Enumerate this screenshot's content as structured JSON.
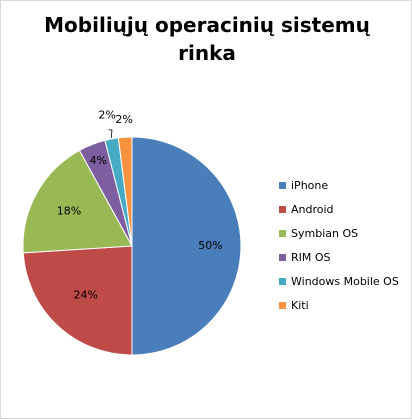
{
  "chart_data": {
    "type": "pie",
    "title_lines": [
      "Mobiliųjų operacinių sistemų",
      "rinka"
    ],
    "categories": [
      "iPhone",
      "Android",
      "Symbian OS",
      "RIM OS",
      "Windows Mobile OS",
      "Kiti"
    ],
    "values": [
      50,
      24,
      18,
      4,
      2,
      2
    ],
    "value_labels": [
      "50%",
      "24%",
      "18%",
      "4%",
      "2%",
      "2%"
    ],
    "colors": [
      "#4a7ebb",
      "#be4b48",
      "#98b954",
      "#7d5fa0",
      "#46aac5",
      "#f69240"
    ],
    "legend_position": "right",
    "start": "top",
    "direction": "clockwise"
  }
}
